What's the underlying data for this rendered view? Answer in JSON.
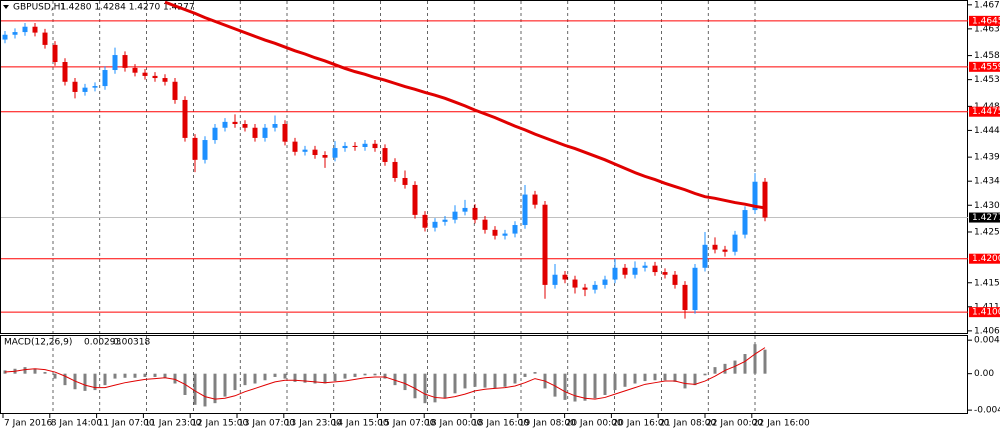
{
  "chart_data": [
    {
      "type": "candlestick",
      "title": "GBPUSD,H1",
      "subtitle": "1.4280 1.4284 1.4270 1.4277",
      "categories": [
        "7 Jan 2016",
        "8 Jan 14:00",
        "11 Jan 07:00",
        "11 Jan 23:00",
        "12 Jan 15:00",
        "13 Jan 07:00",
        "13 Jan 23:00",
        "14 Jan 15:00",
        "15 Jan 07:00",
        "18 Jan 00:00",
        "18 Jan 16:00",
        "19 Jan 08:00",
        "20 Jan 00:00",
        "20 Jan 16:00",
        "21 Jan 08:00",
        "22 Jan 00:00",
        "22 Jan 16:00"
      ],
      "up_color": "#1e90ff",
      "down_color": "#e00000",
      "grid": true,
      "ylim": [
        1.4061,
        1.4684
      ],
      "yticks": [
        1.4675,
        {
          "value": 1.463,
          "label": "1.4630"
        },
        {
          "value": 1.458,
          "label": "1.4580"
        },
        1.4535,
        1.4485,
        {
          "value": 1.444,
          "label": "1.4440"
        },
        {
          "value": 1.439,
          "label": "1.4390"
        },
        1.4345,
        {
          "value": 1.43,
          "label": "1.4300"
        },
        {
          "value": 1.425,
          "label": "1.4250"
        },
        1.4155,
        {
          "value": 1.411,
          "label": "1.4110"
        },
        1.4065
      ],
      "levels": [
        1.4645,
        1.4559,
        1.4475,
        {
          "value": 1.42,
          "label": "1.4200"
        },
        {
          "value": 1.41,
          "label": "1.4100"
        }
      ],
      "level_color": "#ff0000",
      "last_price": 1.4277,
      "candles": [
        [
          1.461,
          1.4626,
          1.4603,
          1.4619
        ],
        [
          1.4619,
          1.4631,
          1.4612,
          1.4624
        ],
        [
          1.4624,
          1.4641,
          1.4617,
          1.4634
        ],
        [
          1.4634,
          1.4641,
          1.4616,
          1.4623
        ],
        [
          1.4623,
          1.463,
          1.4593,
          1.46
        ],
        [
          1.46,
          1.4607,
          1.4561,
          1.4568
        ],
        [
          1.4568,
          1.4575,
          1.4524,
          1.4531
        ],
        [
          1.4531,
          1.4538,
          1.45,
          1.4512
        ],
        [
          1.4512,
          1.4527,
          1.4505,
          1.452
        ],
        [
          1.452,
          1.453,
          1.4513,
          1.4523
        ],
        [
          1.4523,
          1.456,
          1.4516,
          1.4553
        ],
        [
          1.4553,
          1.4595,
          1.4546,
          1.4581
        ],
        [
          1.4581,
          1.4588,
          1.455,
          1.4557
        ],
        [
          1.4557,
          1.4564,
          1.4541,
          1.4548
        ],
        [
          1.4548,
          1.4555,
          1.4535,
          1.4542
        ],
        [
          1.4542,
          1.4549,
          1.4531,
          1.4538
        ],
        [
          1.4538,
          1.4545,
          1.4524,
          1.4531
        ],
        [
          1.4531,
          1.4538,
          1.449,
          1.4497
        ],
        [
          1.4497,
          1.4504,
          1.4419,
          1.4426
        ],
        [
          1.4426,
          1.4433,
          1.4362,
          1.4385
        ],
        [
          1.4385,
          1.4429,
          1.4378,
          1.4422
        ],
        [
          1.4422,
          1.4452,
          1.4415,
          1.4445
        ],
        [
          1.4445,
          1.4463,
          1.4438,
          1.4456
        ],
        [
          1.4456,
          1.447,
          1.4445,
          1.4452
        ],
        [
          1.4452,
          1.4459,
          1.4438,
          1.4445
        ],
        [
          1.4445,
          1.4452,
          1.4419,
          1.4426
        ],
        [
          1.4426,
          1.4452,
          1.4419,
          1.4445
        ],
        [
          1.4445,
          1.4468,
          1.4438,
          1.4452
        ],
        [
          1.4452,
          1.4459,
          1.4412,
          1.4419
        ],
        [
          1.4419,
          1.4426,
          1.4393,
          1.44
        ],
        [
          1.44,
          1.4411,
          1.4393,
          1.4404
        ],
        [
          1.4404,
          1.4411,
          1.4387,
          1.4394
        ],
        [
          1.4394,
          1.4401,
          1.437,
          1.4389
        ],
        [
          1.4389,
          1.442,
          1.4382,
          1.4407
        ],
        [
          1.4407,
          1.4418,
          1.44,
          1.4411
        ],
        [
          1.4411,
          1.4418,
          1.4402,
          1.4409
        ],
        [
          1.4409,
          1.4422,
          1.4402,
          1.4415
        ],
        [
          1.4415,
          1.4422,
          1.44,
          1.4407
        ],
        [
          1.4407,
          1.4414,
          1.4374,
          1.4381
        ],
        [
          1.4381,
          1.4388,
          1.4344,
          1.4351
        ],
        [
          1.4351,
          1.4365,
          1.4331,
          1.4338
        ],
        [
          1.4338,
          1.4345,
          1.4275,
          1.4282
        ],
        [
          1.4282,
          1.4289,
          1.4251,
          1.4258
        ],
        [
          1.4258,
          1.4276,
          1.4251,
          1.4269
        ],
        [
          1.4269,
          1.428,
          1.4262,
          1.4273
        ],
        [
          1.4273,
          1.43,
          1.4266,
          1.4288
        ],
        [
          1.4288,
          1.431,
          1.4281,
          1.4295
        ],
        [
          1.4295,
          1.4302,
          1.4266,
          1.4273
        ],
        [
          1.4273,
          1.428,
          1.4247,
          1.4254
        ],
        [
          1.4254,
          1.4261,
          1.4236,
          1.4243
        ],
        [
          1.4243,
          1.4254,
          1.4236,
          1.4247
        ],
        [
          1.4247,
          1.427,
          1.424,
          1.4263
        ],
        [
          1.4263,
          1.4338,
          1.4256,
          1.432
        ],
        [
          1.432,
          1.4327,
          1.4294,
          1.4301
        ],
        [
          1.4301,
          1.4308,
          1.4125,
          1.4151
        ],
        [
          1.4151,
          1.419,
          1.4144,
          1.417
        ],
        [
          1.417,
          1.4177,
          1.4154,
          1.4161
        ],
        [
          1.4161,
          1.4168,
          1.4135,
          1.4146
        ],
        [
          1.4146,
          1.4153,
          1.413,
          1.4142
        ],
        [
          1.4142,
          1.4158,
          1.4135,
          1.4151
        ],
        [
          1.4151,
          1.4168,
          1.4144,
          1.4161
        ],
        [
          1.4161,
          1.42,
          1.4154,
          1.4183
        ],
        [
          1.4183,
          1.419,
          1.4163,
          1.417
        ],
        [
          1.417,
          1.4195,
          1.4163,
          1.4183
        ],
        [
          1.4183,
          1.4194,
          1.4176,
          1.4187
        ],
        [
          1.4187,
          1.4194,
          1.4168,
          1.4175
        ],
        [
          1.4175,
          1.4182,
          1.4163,
          1.417
        ],
        [
          1.417,
          1.4177,
          1.4144,
          1.4151
        ],
        [
          1.4151,
          1.4158,
          1.4088,
          1.4104
        ],
        [
          1.4104,
          1.419,
          1.4097,
          1.4183
        ],
        [
          1.4183,
          1.425,
          1.4176,
          1.4226
        ],
        [
          1.4226,
          1.424,
          1.421,
          1.4217
        ],
        [
          1.4217,
          1.4224,
          1.4204,
          1.4213
        ],
        [
          1.4213,
          1.4252,
          1.4206,
          1.4245
        ],
        [
          1.4245,
          1.4298,
          1.4238,
          1.4291
        ],
        [
          1.4291,
          1.436,
          1.4284,
          1.4344
        ],
        [
          1.4344,
          1.4351,
          1.427,
          1.4277
        ]
      ],
      "ma": {
        "color": "#e00000",
        "values": [
          null,
          null,
          null,
          null,
          null,
          null,
          null,
          null,
          null,
          null,
          null,
          null,
          null,
          null,
          null,
          null,
          1.468,
          1.4673,
          1.4666,
          1.4659,
          1.4651,
          1.4644,
          1.4637,
          1.463,
          1.4623,
          1.4616,
          1.4609,
          1.4603,
          1.4596,
          1.4589,
          1.4583,
          1.4576,
          1.457,
          1.4563,
          1.4556,
          1.455,
          1.4545,
          1.4539,
          1.4534,
          1.4528,
          1.4522,
          1.4517,
          1.4511,
          1.4506,
          1.45,
          1.4493,
          1.4486,
          1.4478,
          1.4471,
          1.4464,
          1.4456,
          1.4448,
          1.4441,
          1.4433,
          1.4426,
          1.4419,
          1.4412,
          1.4406,
          1.4399,
          1.4392,
          1.4385,
          1.4377,
          1.4369,
          1.4361,
          1.4354,
          1.4348,
          1.4341,
          1.4335,
          1.4329,
          1.4322,
          1.4316,
          1.4313,
          1.4309,
          1.4305,
          1.4302,
          1.4298,
          1.4295
        ]
      }
    },
    {
      "type": "macd",
      "title": "MACD(12,26,9)",
      "color": "#808080",
      "ylim": [
        -0.0048,
        0.0046
      ],
      "yticks": [
        0.00409,
        {
          "value": 0,
          "label": "0.00"
        },
        -0.00445
      ],
      "values": [
        0.0004,
        0.0006,
        0.0008,
        0.0006,
        0.0002,
        -0.0006,
        -0.0014,
        -0.0019,
        -0.0021,
        -0.002,
        -0.0014,
        -0.0006,
        -0.0005,
        -0.0005,
        -0.0004,
        -0.0004,
        -0.0005,
        -0.0012,
        -0.0026,
        -0.0038,
        -0.004,
        -0.0036,
        -0.0028,
        -0.002,
        -0.0014,
        -0.0012,
        -0.0008,
        -0.0004,
        -0.0006,
        -0.001,
        -0.0011,
        -0.0012,
        -0.0012,
        -0.0009,
        -0.0006,
        -0.0004,
        -0.0002,
        -0.0002,
        -0.0006,
        -0.0014,
        -0.002,
        -0.003,
        -0.0036,
        -0.0035,
        -0.003,
        -0.0024,
        -0.0018,
        -0.0016,
        -0.0017,
        -0.0018,
        -0.0016,
        -0.0012,
        -0.0004,
        0.0002,
        -0.0018,
        -0.0028,
        -0.0032,
        -0.0034,
        -0.0033,
        -0.003,
        -0.0026,
        -0.002,
        -0.0016,
        -0.0012,
        -0.0009,
        -0.0008,
        -0.0008,
        -0.001,
        -0.0018,
        -0.0014,
        -0.0002,
        0.0008,
        0.0012,
        0.0016,
        0.0024,
        0.0036,
        0.00293
      ],
      "signal": {
        "color": "#e00000",
        "values": [
          0.0002,
          0.0003,
          0.0005,
          0.0006,
          0.0005,
          0.0002,
          -0.0003,
          -0.0009,
          -0.0014,
          -0.0017,
          -0.0017,
          -0.0014,
          -0.0011,
          -0.0009,
          -0.0007,
          -0.0006,
          -0.0005,
          -0.0007,
          -0.0013,
          -0.0021,
          -0.0028,
          -0.0031,
          -0.003,
          -0.0027,
          -0.0022,
          -0.0018,
          -0.0014,
          -0.001,
          -0.0008,
          -0.0008,
          -0.0009,
          -0.001,
          -0.0011,
          -0.001,
          -0.0009,
          -0.0007,
          -0.0005,
          -0.0004,
          -0.0004,
          -0.0008,
          -0.0012,
          -0.0018,
          -0.0025,
          -0.0029,
          -0.003,
          -0.0028,
          -0.0025,
          -0.0021,
          -0.0019,
          -0.0018,
          -0.0017,
          -0.0015,
          -0.0011,
          -0.0006,
          -0.0009,
          -0.0015,
          -0.0022,
          -0.0027,
          -0.003,
          -0.0031,
          -0.0029,
          -0.0025,
          -0.0021,
          -0.0017,
          -0.0013,
          -0.0011,
          -0.0009,
          -0.0009,
          -0.0012,
          -0.0013,
          -0.0009,
          -0.0003,
          0.0004,
          0.0009,
          0.0015,
          0.0024,
          0.00318
        ]
      }
    }
  ]
}
